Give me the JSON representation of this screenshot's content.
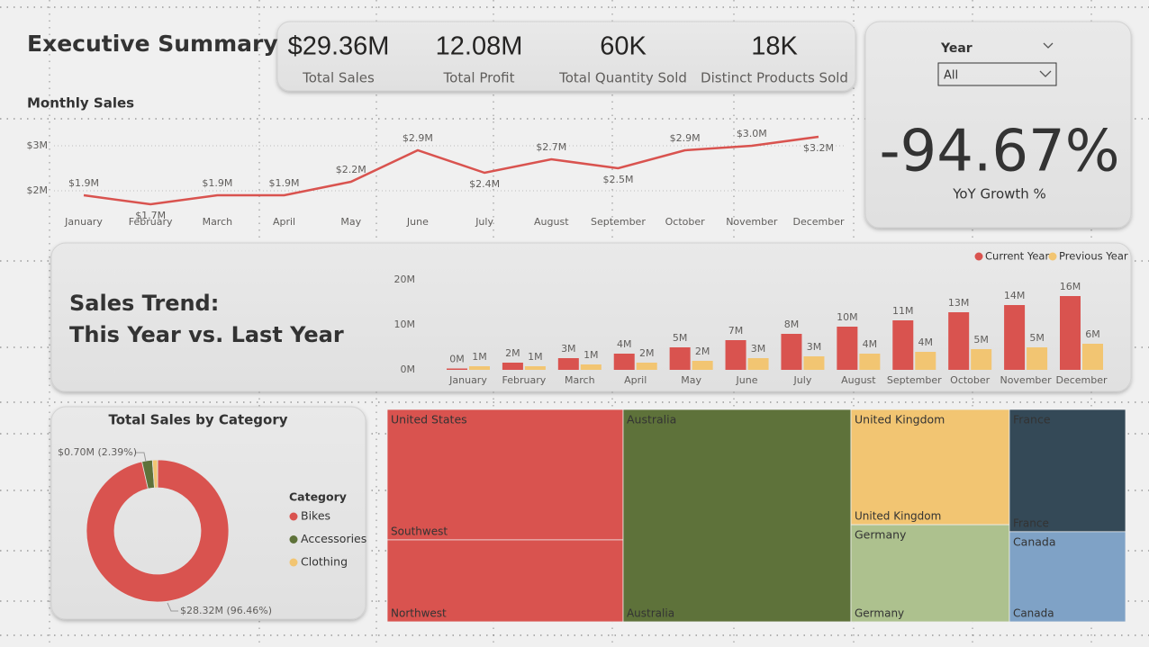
{
  "header": {
    "title": "Executive Summary"
  },
  "kpis": [
    {
      "value": "$29.36M",
      "label": "Total Sales"
    },
    {
      "value": "12.08M",
      "label": "Total Profit"
    },
    {
      "value": "60K",
      "label": "Total Quantity Sold"
    },
    {
      "value": "18K",
      "label": "Distinct Products Sold"
    }
  ],
  "slicer": {
    "title": "Year",
    "selected": "All"
  },
  "yoy": {
    "value": "-94.67%",
    "label": "YoY Growth %"
  },
  "chart_data": [
    {
      "type": "line",
      "title": "Monthly Sales",
      "categories": [
        "January",
        "February",
        "March",
        "April",
        "May",
        "June",
        "July",
        "August",
        "September",
        "October",
        "November",
        "December"
      ],
      "values": [
        1.9,
        1.7,
        1.9,
        1.9,
        2.2,
        2.9,
        2.4,
        2.7,
        2.5,
        2.9,
        3.0,
        3.2
      ],
      "value_labels": [
        "$1.9M",
        "$1.7M",
        "$1.9M",
        "$1.9M",
        "$2.2M",
        "$2.9M",
        "$2.4M",
        "$2.7M",
        "$2.5M",
        "$2.9M",
        "$3.0M",
        "$3.2M"
      ],
      "color": "#d9534f",
      "ylim": [
        1.5,
        3.5
      ],
      "yticks": [
        {
          "value": 2,
          "label": "$2M"
        },
        {
          "value": 3,
          "label": "$3M"
        }
      ],
      "grid": true
    },
    {
      "type": "bar",
      "title": [
        "Sales Trend:",
        "This Year vs. Last Year"
      ],
      "categories": [
        "January",
        "February",
        "March",
        "April",
        "May",
        "June",
        "July",
        "August",
        "September",
        "October",
        "November",
        "December"
      ],
      "series": [
        {
          "name": "Current Year",
          "color": "#d9534f",
          "values": [
            0.3,
            1.6,
            2.6,
            3.6,
            5.0,
            6.6,
            8.0,
            9.6,
            11.0,
            12.8,
            14.4,
            16.4
          ],
          "value_labels": [
            "0M",
            "2M",
            "3M",
            "4M",
            "5M",
            "7M",
            "8M",
            "10M",
            "11M",
            "13M",
            "14M",
            "16M"
          ]
        },
        {
          "name": "Previous Year",
          "color": "#f2c572",
          "values": [
            0.8,
            0.8,
            1.2,
            1.6,
            2.0,
            2.6,
            3.0,
            3.6,
            4.0,
            4.6,
            5.0,
            5.8
          ],
          "value_labels": [
            "1M",
            "1M",
            "1M",
            "2M",
            "2M",
            "3M",
            "3M",
            "4M",
            "4M",
            "5M",
            "5M",
            "6M"
          ]
        }
      ],
      "ylim": [
        0,
        20
      ],
      "yticks": [
        {
          "value": 0,
          "label": "0M"
        },
        {
          "value": 10,
          "label": "10M"
        },
        {
          "value": 20,
          "label": "20M"
        }
      ],
      "legend": "top-right"
    },
    {
      "type": "donut",
      "title": "Total Sales by Category",
      "legend_title": "Category",
      "categories": [
        "Bikes",
        "Accessories",
        "Clothing"
      ],
      "values": [
        28.32,
        0.7,
        0.34
      ],
      "value_labels": [
        "$28.32M (96.46%)",
        "$0.70M (2.39%)",
        null
      ],
      "colors": [
        "#d9534f",
        "#5e723a",
        "#f2c572"
      ]
    },
    {
      "type": "treemap",
      "nodes": [
        {
          "name": "United States",
          "color": "#d9534f",
          "children": [
            {
              "name": "Southwest",
              "value": 5.76
            },
            {
              "name": "Northwest",
              "value": 3.62
            }
          ]
        },
        {
          "name": "Australia",
          "color": "#5e723a",
          "children": [
            {
              "name": "Australia",
              "value": 9.06
            }
          ]
        },
        {
          "name": "United Kingdom",
          "color": "#f2c572",
          "children": [
            {
              "name": "United Kingdom",
              "value": 3.42
            }
          ]
        },
        {
          "name": "Germany",
          "color": "#adc18e",
          "children": [
            {
              "name": "Germany",
              "value": 2.88
            }
          ]
        },
        {
          "name": "France",
          "color": "#344957",
          "children": [
            {
              "name": "France",
              "value": 2.66
            }
          ]
        },
        {
          "name": "Canada",
          "color": "#7fa2c6",
          "children": [
            {
              "name": "Canada",
              "value": 1.96
            }
          ]
        }
      ]
    }
  ]
}
